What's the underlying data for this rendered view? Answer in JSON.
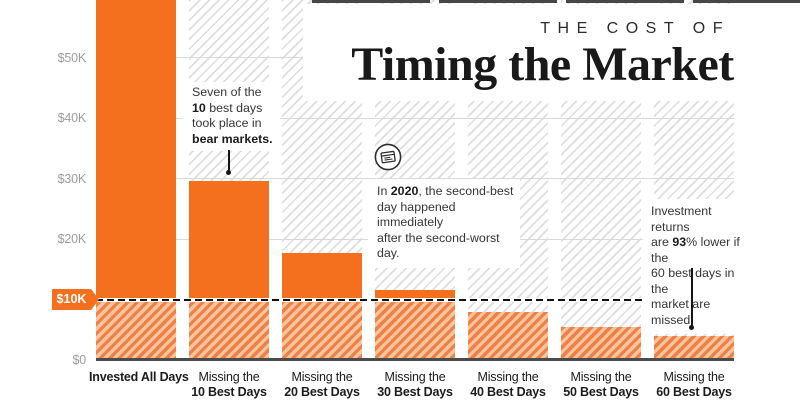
{
  "title": {
    "kicker": "THE COST OF",
    "main": "Timing the Market"
  },
  "colors": {
    "accent_orange": "#f5701e",
    "hatch_orange_stripe": "#ef8046",
    "hatch_orange_bg": "#f9c49e",
    "background_hatch_gray": "#dedede",
    "gridline": "#d9d9d9",
    "axis": "#4b4b4b",
    "muted_axis_label": "#9c9c9c",
    "ink": "#1c1c1c"
  },
  "y_axis": {
    "tick_labels": [
      "$50K",
      "$40K",
      "$30K",
      "$20K",
      "$10K",
      "$0"
    ],
    "tick_values": [
      50000,
      40000,
      30000,
      20000,
      10000,
      0
    ],
    "highlight_label": "$10K",
    "highlight_value": 10000
  },
  "chart_data": {
    "type": "bar",
    "title": "The Cost of Timing the Market",
    "categories": [
      "Invested All Days",
      "Missing the 10 Best Days",
      "Missing the 20 Best Days",
      "Missing the 30 Best Days",
      "Missing the 40 Best Days",
      "Missing the 50 Best Days",
      "Missing the 60 Best Days"
    ],
    "x_tick_lines": [
      [
        "Invested All Days"
      ],
      [
        "Missing the",
        "10 Best Days"
      ],
      [
        "Missing the",
        "20 Best Days"
      ],
      [
        "Missing the",
        "30 Best Days"
      ],
      [
        "Missing the",
        "40 Best Days"
      ],
      [
        "Missing the",
        "50 Best Days"
      ],
      [
        "Missing the",
        "60 Best Days"
      ]
    ],
    "values": [
      60000,
      29600,
      17700,
      11600,
      7900,
      5500,
      3900
    ],
    "values_note": "values estimated from gridlines; first bar is cropped at the top of the image (> $59.5K)",
    "ylim": [
      0,
      59500
    ],
    "grid": "horizontal",
    "legend": "none",
    "threshold_line": {
      "value": 10000,
      "style": "dashed",
      "label": "$10K"
    }
  },
  "annotations": [
    {
      "id": "bear-markets",
      "lines": [
        [
          {
            "t": "Seven of the"
          }
        ],
        [
          {
            "t": "10",
            "b": true
          },
          {
            "t": " best days"
          }
        ],
        [
          {
            "t": "took place in"
          }
        ],
        [
          {
            "t": "bear markets.",
            "b": true
          }
        ]
      ]
    },
    {
      "id": "year-2020",
      "icon": "calendar-icon",
      "lines": [
        [
          {
            "t": "In "
          },
          {
            "t": "2020",
            "b": true
          },
          {
            "t": ", the second-best"
          }
        ],
        [
          {
            "t": "day happened immediately"
          }
        ],
        [
          {
            "t": "after the second-worst day."
          }
        ]
      ]
    },
    {
      "id": "93-percent-lower",
      "lines": [
        [
          {
            "t": "Investment returns"
          }
        ],
        [
          {
            "t": "are "
          },
          {
            "t": "93",
            "b": true
          },
          {
            "t": "% lower if the"
          }
        ],
        [
          {
            "t": "60 best days in the"
          }
        ],
        [
          {
            "t": "market are missed."
          }
        ]
      ]
    }
  ]
}
